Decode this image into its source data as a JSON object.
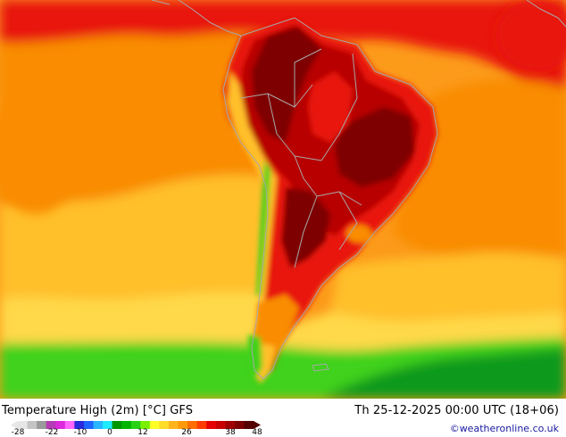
{
  "map": {
    "region": "South America",
    "colors": {
      "ocean_warm": "#f98c00",
      "ocean_orange": "#fc9a1a",
      "ocean_yellow": "#ffc02a",
      "ocean_light_yellow": "#ffd94a",
      "green_light": "#3fd21a",
      "green_dark": "#0a9a1a",
      "red": "#e81808",
      "dark_red": "#b80000",
      "maroon": "#7e0000",
      "coast": "#a8a8a8"
    }
  },
  "footer": {
    "title": "Temperature High (2m) [°C] GFS",
    "datetime": "Th 25-12-2025 00:00 UTC (18+06)",
    "credit": "©weatheronline.co.uk"
  },
  "legend": {
    "ticks": [
      "-28",
      "-22",
      "-10",
      "0",
      "12",
      "26",
      "38",
      "48"
    ],
    "segment_colors": [
      "#e6e6e6",
      "#c4c4c4",
      "#9a9a9a",
      "#b43cb4",
      "#dc28dc",
      "#ff64ff",
      "#2828dc",
      "#1e64ff",
      "#28b4ff",
      "#1eebff",
      "#009600",
      "#00b400",
      "#28d214",
      "#78f000",
      "#ffff28",
      "#ffdc28",
      "#ffb41e",
      "#ff9b0a",
      "#ff6e00",
      "#ff3c00",
      "#e60000",
      "#c80000",
      "#a00000",
      "#7d0000",
      "#550000"
    ]
  }
}
